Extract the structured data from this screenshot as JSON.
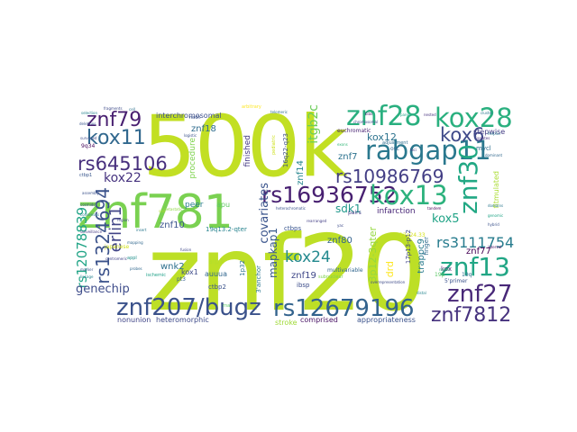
{
  "words": [
    {
      "text": "znf20",
      "color": "#bddf26"
    },
    {
      "text": "500k",
      "color": "#c2df23"
    },
    {
      "text": "znf781",
      "color": "#7ad151"
    },
    {
      "text": "rs16936752",
      "color": "#482071"
    },
    {
      "text": "znf207/bugz",
      "color": "#3b528b"
    },
    {
      "text": "rs12679196",
      "color": "#33638d"
    },
    {
      "text": "rabgap11",
      "color": "#2a788e"
    },
    {
      "text": "znf28",
      "color": "#29af7f"
    },
    {
      "text": "kox28",
      "color": "#2ab07f"
    },
    {
      "text": "kox13",
      "color": "#2db27d"
    },
    {
      "text": "znf30",
      "color": "#22a884"
    },
    {
      "text": "znf13",
      "color": "#21a685"
    },
    {
      "text": "znf27",
      "color": "#482878"
    },
    {
      "text": "znf7812",
      "color": "#46327e"
    },
    {
      "text": "rs645106",
      "color": "#472f7d"
    },
    {
      "text": "rs10986769",
      "color": "#433e85"
    },
    {
      "text": "znf79",
      "color": "#481f70"
    },
    {
      "text": "kox11",
      "color": "#31688e"
    },
    {
      "text": "kox6",
      "color": "#3e4989"
    },
    {
      "text": "kox22",
      "color": "#46337f"
    },
    {
      "text": "rs1324694",
      "color": "#3b528b"
    },
    {
      "text": "erlin1",
      "color": "#414487"
    },
    {
      "text": "rs12078839",
      "color": "#20a486"
    },
    {
      "text": "rs3111754",
      "color": "#287c8e"
    },
    {
      "text": "kox24",
      "color": "#23898e"
    },
    {
      "text": "kox5",
      "color": "#20a386"
    },
    {
      "text": "genechip",
      "color": "#3e4c8a"
    },
    {
      "text": "covariates",
      "color": "#3a548c"
    },
    {
      "text": "mapkap1",
      "color": "#38598c"
    },
    {
      "text": "sdk1",
      "color": "#1f988b"
    },
    {
      "text": "trappc9",
      "color": "#297b8e"
    },
    {
      "text": "itgb2c",
      "color": "#6ccd5a"
    },
    {
      "text": "3p12-3qter",
      "color": "#95d840"
    },
    {
      "text": "drd",
      "color": "#fde725"
    },
    {
      "text": "kox12",
      "color": "#2c728e"
    },
    {
      "text": "znf14",
      "color": "#25858e"
    },
    {
      "text": "znf80",
      "color": "#33638d"
    },
    {
      "text": "znf19",
      "color": "#3f4889"
    },
    {
      "text": "znf18",
      "color": "#2f6c8e"
    },
    {
      "text": "znf10",
      "color": "#3a548c"
    },
    {
      "text": "znf7",
      "color": "#2c728e"
    },
    {
      "text": "znf77",
      "color": "#440154"
    },
    {
      "text": "wnk2",
      "color": "#2d708e"
    },
    {
      "text": "finished",
      "color": "#443a83"
    },
    {
      "text": "procedure",
      "color": "#7fd34e"
    },
    {
      "text": "peer",
      "color": "#287d8e"
    },
    {
      "text": "infarction",
      "color": "#482677"
    },
    {
      "text": "interchromosomal",
      "color": "#3c4f8a"
    },
    {
      "text": "heteromorphic",
      "color": "#3e4a89"
    },
    {
      "text": "nonunion",
      "color": "#404588"
    },
    {
      "text": "comprised",
      "color": "#471164"
    },
    {
      "text": "appropriateness",
      "color": "#3b528b"
    },
    {
      "text": "stepwise",
      "color": "#433d84"
    },
    {
      "text": "stroke",
      "color": "#a0da39"
    },
    {
      "text": "fitmulated",
      "color": "#aadc32"
    },
    {
      "text": "apu",
      "color": "#5ec962"
    },
    {
      "text": "auuua",
      "color": "#31678e"
    },
    {
      "text": "euchromatic",
      "color": "#482173"
    },
    {
      "text": "19q13.2-qter",
      "color": "#26828e"
    },
    {
      "text": "ctbp2",
      "color": "#3b528b"
    },
    {
      "text": "ctbps",
      "color": "#39568c"
    },
    {
      "text": "alp1",
      "color": "#b5de2b"
    },
    {
      "text": "kox1",
      "color": "#3e4c8a"
    },
    {
      "text": "kox",
      "color": "#481d6f"
    },
    {
      "text": "ibsp",
      "color": "#3d4d8a"
    },
    {
      "text": "3'anchor",
      "color": "#2a768e"
    },
    {
      "text": "1p32",
      "color": "#2c718e"
    },
    {
      "text": "multivariable",
      "color": "#31668e"
    },
    {
      "text": "16q22-q23",
      "color": "#3d4e8a"
    },
    {
      "text": "finger",
      "color": "#2f6b8e"
    },
    {
      "text": "5'primer",
      "color": "#3b528b"
    },
    {
      "text": "mycl",
      "color": "#2e6e8e"
    },
    {
      "text": "osc",
      "color": "#32648e"
    },
    {
      "text": "pairs",
      "color": "#433e85"
    },
    {
      "text": "17p13-p12",
      "color": "#404688"
    },
    {
      "text": "12q24.33",
      "color": "#d5e21a"
    },
    {
      "text": "japanese",
      "color": "#d2e21b"
    },
    {
      "text": "9q34",
      "color": "#46085c"
    },
    {
      "text": "19q",
      "color": "#2e6f8e"
    },
    {
      "text": "19p",
      "color": "#5ac864"
    },
    {
      "text": "pt3",
      "color": "#35608d"
    },
    {
      "text": "ctbp1",
      "color": "#39568c"
    },
    {
      "text": "ischemic",
      "color": "#1fa188"
    },
    {
      "text": "appl",
      "color": "#21918c"
    },
    {
      "text": "nadh",
      "color": "#3b528b"
    },
    {
      "text": "adjustment",
      "color": "#2e6d8e"
    },
    {
      "text": "pediatric",
      "color": "#cde11d"
    },
    {
      "text": "rna",
      "color": "#5ac864"
    },
    {
      "text": "subnuclear",
      "color": "#7fd34e"
    },
    {
      "text": "logistic",
      "color": "#3b528b"
    },
    {
      "text": "mapping",
      "color": "#31688e"
    },
    {
      "text": "helpful",
      "color": "#2a768e"
    },
    {
      "text": "region",
      "color": "#3f4788"
    },
    {
      "text": "size",
      "color": "#b0dd2f"
    },
    {
      "text": "fragments",
      "color": "#3e4a89"
    },
    {
      "text": "selection",
      "color": "#25848e"
    },
    {
      "text": "assembly",
      "color": "#3b528b"
    },
    {
      "text": "surveyed",
      "color": "#3e4c8a"
    },
    {
      "text": "nodes",
      "color": "#35b779"
    },
    {
      "text": "dominant",
      "color": "#31688e"
    },
    {
      "text": "cell",
      "color": "#2c718e"
    },
    {
      "text": "bias",
      "color": "#482071"
    },
    {
      "text": "cluster",
      "color": "#2a788e"
    },
    {
      "text": "nested",
      "color": "#46327e"
    },
    {
      "text": "panel",
      "color": "#20a386"
    },
    {
      "text": "loci",
      "color": "#433e85"
    },
    {
      "text": "chromosomal",
      "color": "#3e4989"
    },
    {
      "text": "telomeric",
      "color": "#2d708e"
    },
    {
      "text": "probes",
      "color": "#31688e"
    },
    {
      "text": "heterochromatic",
      "color": "#3b528b"
    },
    {
      "text": "centromeric",
      "color": "#414487"
    },
    {
      "text": "arbitrary",
      "color": "#fde725"
    },
    {
      "text": "deletions",
      "color": "#39568c"
    },
    {
      "text": "cosmids",
      "color": "#3e4c8a"
    },
    {
      "text": "consensus",
      "color": "#297b8e"
    },
    {
      "text": "surveillance",
      "color": "#443a83"
    },
    {
      "text": "isolates",
      "color": "#472f7d"
    },
    {
      "text": "interval",
      "color": "#46085c"
    },
    {
      "text": "domains",
      "color": "#2a788e"
    },
    {
      "text": "genomic",
      "color": "#20a486"
    },
    {
      "text": "hybrid",
      "color": "#3b528b"
    },
    {
      "text": "rearranged",
      "color": "#433e85"
    },
    {
      "text": "overrepresentation",
      "color": "#3e4a89"
    },
    {
      "text": "distal",
      "color": "#25858e"
    },
    {
      "text": "exons",
      "color": "#35b779"
    },
    {
      "text": "fusion",
      "color": "#3f4889"
    },
    {
      "text": "metastatic",
      "color": "#8fd744"
    },
    {
      "text": "tandem",
      "color": "#440154"
    },
    {
      "text": "insert",
      "color": "#2a788e"
    },
    {
      "text": "marker",
      "color": "#3b528b"
    },
    {
      "text": "linkage",
      "color": "#26828e"
    },
    {
      "text": "yac",
      "color": "#3e4c8a"
    }
  ]
}
